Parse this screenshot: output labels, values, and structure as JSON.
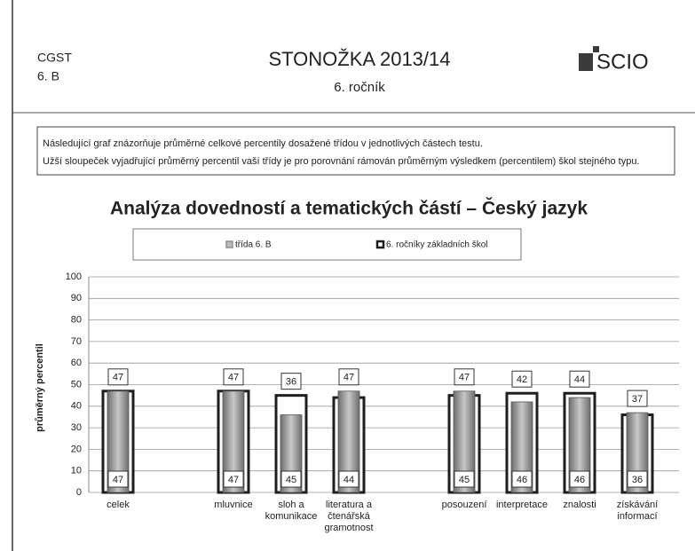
{
  "header": {
    "school": "CGST",
    "class": "6. B",
    "title": "STONOŽKA 2013/14",
    "subtitle": "6. ročník",
    "logo": "SCIO"
  },
  "note": [
    "Následující graf znázorňuje průměrné celkové percentily dosažené třídou v jednotlivých částech testu.",
    "Užší sloupeček vyjadřující průměrný percentil vaší třídy je pro porovnání rámován průměrným výsledkem (percentilem) škol stejného typu."
  ],
  "chart_data": {
    "type": "bar",
    "title": "Analýza dovedností a tematických částí – Český jazyk",
    "y_label": "průměrný percentil",
    "categories": [
      "celek",
      null,
      "mluvnice",
      "sloh a\nkomunikace",
      "literatura a\nčtenářská\ngramotnost",
      null,
      "posouzení",
      "interpretace",
      "znalosti",
      "získávání\ninformací"
    ],
    "series": [
      {
        "name": "třída  6. B",
        "color": "#8e8e8e",
        "values": [
          47,
          null,
          47,
          36,
          47,
          null,
          47,
          42,
          44,
          37
        ]
      },
      {
        "name": "6. ročníky základních škol",
        "color": "#1e1e1e",
        "values": [
          47,
          null,
          47,
          45,
          44,
          null,
          45,
          46,
          46,
          36
        ]
      }
    ],
    "ylim": [
      0,
      100
    ],
    "yticks": [
      0,
      10,
      20,
      30,
      40,
      50,
      60,
      70,
      80,
      90,
      100
    ],
    "grid": true,
    "legend": "top"
  }
}
